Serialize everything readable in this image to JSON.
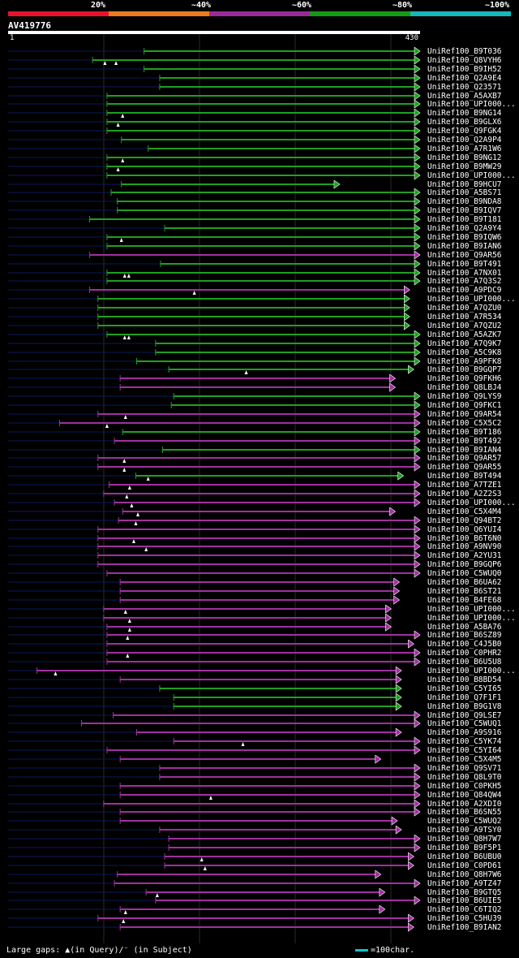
{
  "legend": [
    {
      "label": "20%",
      "color": "#e8122b"
    },
    {
      "label": "~40%",
      "color": "#ee7a1e"
    },
    {
      "label": "~60%",
      "color": "#9a2a9a"
    },
    {
      "label": "~80%",
      "color": "#139b13"
    },
    {
      "label": "~100%",
      "color": "#14b8bb"
    }
  ],
  "query": {
    "name": "AV419776",
    "start": "1",
    "end": "430"
  },
  "colors": {
    "green": "#1fa01f",
    "purple": "#a030a0",
    "navy": "#0a1a5a",
    "marker": "#ffffff"
  },
  "hits": [
    {
      "name": "UniRef100_B9T036",
      "s": 0.33,
      "e": 1.0,
      "c": "green"
    },
    {
      "name": "UniRef100_Q8VYH6",
      "s": 0.205,
      "e": 1.0,
      "c": "green",
      "m": [
        0.235,
        0.262
      ]
    },
    {
      "name": "UniRef100_B9IH52",
      "s": 0.33,
      "e": 1.0,
      "c": "green"
    },
    {
      "name": "UniRef100_Q2A9E4",
      "s": 0.368,
      "e": 1.0,
      "c": "green"
    },
    {
      "name": "UniRef100_Q23571",
      "s": 0.368,
      "e": 1.0,
      "c": "green"
    },
    {
      "name": "UniRef100_A5AXB7",
      "s": 0.24,
      "e": 1.0,
      "c": "green"
    },
    {
      "name": "UniRef100_UPI000...",
      "s": 0.24,
      "e": 1.0,
      "c": "green"
    },
    {
      "name": "UniRef100_B9NG14",
      "s": 0.24,
      "e": 1.0,
      "c": "green",
      "m": [
        0.278
      ]
    },
    {
      "name": "UniRef100_B9GLX6",
      "s": 0.24,
      "e": 1.0,
      "c": "green",
      "m": [
        0.267
      ]
    },
    {
      "name": "UniRef100_Q9FGK4",
      "s": 0.24,
      "e": 1.0,
      "c": "green"
    },
    {
      "name": "UniRef100_Q2A9P4",
      "s": 0.275,
      "e": 1.0,
      "c": "green"
    },
    {
      "name": "UniRef100_A7R1W6",
      "s": 0.34,
      "e": 1.0,
      "c": "green"
    },
    {
      "name": "UniRef100_B9NG12",
      "s": 0.24,
      "e": 1.0,
      "c": "green",
      "m": [
        0.278
      ]
    },
    {
      "name": "UniRef100_B9MW29",
      "s": 0.24,
      "e": 1.0,
      "c": "green",
      "m": [
        0.267
      ]
    },
    {
      "name": "UniRef100_UPI000...",
      "s": 0.24,
      "e": 1.0,
      "c": "green"
    },
    {
      "name": "UniRef100_B9HCU7",
      "s": 0.275,
      "e": 0.805,
      "c": "green"
    },
    {
      "name": "UniRef100_A5BS71",
      "s": 0.25,
      "e": 1.0,
      "c": "green"
    },
    {
      "name": "UniRef100_B9NDA8",
      "s": 0.265,
      "e": 1.0,
      "c": "green"
    },
    {
      "name": "UniRef100_B9IQV7",
      "s": 0.265,
      "e": 1.0,
      "c": "green"
    },
    {
      "name": "UniRef100_B9T181",
      "s": 0.198,
      "e": 1.0,
      "c": "green"
    },
    {
      "name": "UniRef100_Q2A9Y4",
      "s": 0.38,
      "e": 1.0,
      "c": "green"
    },
    {
      "name": "UniRef100_B9IQW6",
      "s": 0.24,
      "e": 1.0,
      "c": "green",
      "m": [
        0.275
      ]
    },
    {
      "name": "UniRef100_B9IAN6",
      "s": 0.24,
      "e": 1.0,
      "c": "green"
    },
    {
      "name": "UniRef100_Q9AR56",
      "s": 0.198,
      "e": 1.0,
      "c": "purple"
    },
    {
      "name": "UniRef100_B9T491",
      "s": 0.37,
      "e": 1.0,
      "c": "green"
    },
    {
      "name": "UniRef100_A7NX01",
      "s": 0.24,
      "e": 1.0,
      "c": "green",
      "m": [
        0.283,
        0.293
      ]
    },
    {
      "name": "UniRef100_A7Q3S2",
      "s": 0.24,
      "e": 1.0,
      "c": "green"
    },
    {
      "name": "UniRef100_A9PDC9",
      "s": 0.198,
      "e": 0.975,
      "c": "purple",
      "m": [
        0.452
      ]
    },
    {
      "name": "UniRef100_UPI000...",
      "s": 0.218,
      "e": 0.975,
      "c": "green"
    },
    {
      "name": "UniRef100_A7QZU0",
      "s": 0.218,
      "e": 0.975,
      "c": "green"
    },
    {
      "name": "UniRef100_A7R534",
      "s": 0.218,
      "e": 0.975,
      "c": "green"
    },
    {
      "name": "UniRef100_A7QZU2",
      "s": 0.218,
      "e": 0.975,
      "c": "green"
    },
    {
      "name": "UniRef100_A5AZK7",
      "s": 0.24,
      "e": 1.0,
      "c": "green",
      "m": [
        0.283,
        0.293
      ]
    },
    {
      "name": "UniRef100_A7Q9K7",
      "s": 0.358,
      "e": 1.0,
      "c": "green"
    },
    {
      "name": "UniRef100_A5C9K8",
      "s": 0.358,
      "e": 1.0,
      "c": "green"
    },
    {
      "name": "UniRef100_A9PFK8",
      "s": 0.312,
      "e": 1.0,
      "c": "green"
    },
    {
      "name": "UniRef100_B9GQP7",
      "s": 0.39,
      "e": 0.985,
      "c": "green",
      "m": [
        0.578
      ]
    },
    {
      "name": "UniRef100_Q9FKH6",
      "s": 0.272,
      "e": 0.94,
      "c": "purple"
    },
    {
      "name": "UniRef100_Q8LBJ4",
      "s": 0.272,
      "e": 0.94,
      "c": "purple"
    },
    {
      "name": "UniRef100_Q9LYS9",
      "s": 0.402,
      "e": 1.0,
      "c": "green"
    },
    {
      "name": "UniRef100_Q9FKC1",
      "s": 0.396,
      "e": 1.0,
      "c": "green"
    },
    {
      "name": "UniRef100_Q9AR54",
      "s": 0.218,
      "e": 1.0,
      "c": "purple",
      "m": [
        0.285
      ]
    },
    {
      "name": "UniRef100_C5X5C2",
      "s": 0.125,
      "e": 1.0,
      "c": "purple",
      "m": [
        0.24
      ]
    },
    {
      "name": "UniRef100_B9T186",
      "s": 0.278,
      "e": 1.0,
      "c": "green"
    },
    {
      "name": "UniRef100_B9T492",
      "s": 0.258,
      "e": 1.0,
      "c": "purple"
    },
    {
      "name": "UniRef100_B9IAN4",
      "s": 0.375,
      "e": 1.0,
      "c": "green"
    },
    {
      "name": "UniRef100_Q9AR57",
      "s": 0.218,
      "e": 1.0,
      "c": "purple",
      "m": [
        0.282
      ]
    },
    {
      "name": "UniRef100_Q9AR55",
      "s": 0.218,
      "e": 1.0,
      "c": "purple",
      "m": [
        0.282
      ]
    },
    {
      "name": "UniRef100_B9T494",
      "s": 0.31,
      "e": 0.96,
      "c": "green",
      "m": [
        0.34
      ]
    },
    {
      "name": "UniRef100_A7TZE1",
      "s": 0.245,
      "e": 1.0,
      "c": "purple",
      "m": [
        0.295
      ]
    },
    {
      "name": "UniRef100_A2Z2S3",
      "s": 0.232,
      "e": 1.0,
      "c": "purple",
      "m": [
        0.288
      ]
    },
    {
      "name": "UniRef100_UPI000...",
      "s": 0.258,
      "e": 1.0,
      "c": "purple",
      "m": [
        0.3
      ]
    },
    {
      "name": "UniRef100_C5X4M4",
      "s": 0.278,
      "e": 0.94,
      "c": "purple",
      "m": [
        0.315
      ]
    },
    {
      "name": "UniRef100_Q94BT2",
      "s": 0.268,
      "e": 1.0,
      "c": "purple",
      "m": [
        0.31
      ]
    },
    {
      "name": "UniRef100_Q6YUI4",
      "s": 0.218,
      "e": 1.0,
      "c": "purple"
    },
    {
      "name": "UniRef100_B6T6N0",
      "s": 0.218,
      "e": 1.0,
      "c": "purple",
      "m": [
        0.305
      ]
    },
    {
      "name": "UniRef100_A9NV90",
      "s": 0.218,
      "e": 1.0,
      "c": "purple",
      "m": [
        0.335
      ]
    },
    {
      "name": "UniRef100_A2YU31",
      "s": 0.218,
      "e": 1.0,
      "c": "purple"
    },
    {
      "name": "UniRef100_B9GQP6",
      "s": 0.218,
      "e": 1.0,
      "c": "purple"
    },
    {
      "name": "UniRef100_C5WUQ0",
      "s": 0.24,
      "e": 1.0,
      "c": "purple"
    },
    {
      "name": "UniRef100_B6UA62",
      "s": 0.272,
      "e": 0.95,
      "c": "purple"
    },
    {
      "name": "UniRef100_B6ST21",
      "s": 0.272,
      "e": 0.95,
      "c": "purple"
    },
    {
      "name": "UniRef100_B4FE68",
      "s": 0.272,
      "e": 0.95,
      "c": "purple"
    },
    {
      "name": "UniRef100_UPI000...",
      "s": 0.232,
      "e": 0.93,
      "c": "purple",
      "m": [
        0.285
      ]
    },
    {
      "name": "UniRef100_UPI000...",
      "s": 0.232,
      "e": 0.93,
      "c": "purple",
      "m": [
        0.295
      ]
    },
    {
      "name": "UniRef100_A5BA76",
      "s": 0.24,
      "e": 0.93,
      "c": "purple",
      "m": [
        0.295
      ]
    },
    {
      "name": "UniRef100_B6SZ89",
      "s": 0.24,
      "e": 1.0,
      "c": "purple",
      "m": [
        0.29
      ]
    },
    {
      "name": "UniRef100_C4J5B0",
      "s": 0.24,
      "e": 0.985,
      "c": "purple"
    },
    {
      "name": "UniRef100_C0PHR2",
      "s": 0.24,
      "e": 1.0,
      "c": "purple",
      "m": [
        0.29
      ]
    },
    {
      "name": "UniRef100_B6U5U8",
      "s": 0.24,
      "e": 1.0,
      "c": "purple"
    },
    {
      "name": "UniRef100_UPI000...",
      "s": 0.07,
      "e": 0.955,
      "c": "purple",
      "m": [
        0.115
      ]
    },
    {
      "name": "UniRef100_B8BD54",
      "s": 0.272,
      "e": 0.955,
      "c": "purple"
    },
    {
      "name": "UniRef100_C5YI65",
      "s": 0.368,
      "e": 0.955,
      "c": "green"
    },
    {
      "name": "UniRef100_Q7F1F1",
      "s": 0.402,
      "e": 0.955,
      "c": "green"
    },
    {
      "name": "UniRef100_B9G1V8",
      "s": 0.402,
      "e": 0.955,
      "c": "green"
    },
    {
      "name": "UniRef100_Q9LSE7",
      "s": 0.255,
      "e": 1.0,
      "c": "purple"
    },
    {
      "name": "UniRef100_C5WUQ1",
      "s": 0.178,
      "e": 1.0,
      "c": "purple"
    },
    {
      "name": "UniRef100_A9S916",
      "s": 0.312,
      "e": 0.955,
      "c": "purple"
    },
    {
      "name": "UniRef100_C5YK74",
      "s": 0.402,
      "e": 1.0,
      "c": "purple",
      "m": [
        0.57
      ]
    },
    {
      "name": "UniRef100_C5YI64",
      "s": 0.24,
      "e": 1.0,
      "c": "purple"
    },
    {
      "name": "UniRef100_C5X4M5",
      "s": 0.272,
      "e": 0.905,
      "c": "purple"
    },
    {
      "name": "UniRef100_Q9SV71",
      "s": 0.368,
      "e": 1.0,
      "c": "purple"
    },
    {
      "name": "UniRef100_Q8L9T0",
      "s": 0.368,
      "e": 1.0,
      "c": "purple"
    },
    {
      "name": "UniRef100_C0PKH5",
      "s": 0.272,
      "e": 1.0,
      "c": "purple"
    },
    {
      "name": "UniRef100_Q84QW4",
      "s": 0.272,
      "e": 1.0,
      "c": "purple",
      "m": [
        0.492
      ]
    },
    {
      "name": "UniRef100_A2XDI0",
      "s": 0.232,
      "e": 1.0,
      "c": "purple"
    },
    {
      "name": "UniRef100_B6SN55",
      "s": 0.272,
      "e": 1.0,
      "c": "purple"
    },
    {
      "name": "UniRef100_C5WUQ2",
      "s": 0.272,
      "e": 0.945,
      "c": "purple"
    },
    {
      "name": "UniRef100_A9TSY0",
      "s": 0.368,
      "e": 0.955,
      "c": "purple"
    },
    {
      "name": "UniRef100_Q8H7W7",
      "s": 0.39,
      "e": 1.0,
      "c": "purple"
    },
    {
      "name": "UniRef100_B9F5P1",
      "s": 0.39,
      "e": 1.0,
      "c": "purple"
    },
    {
      "name": "UniRef100_B6UBU0",
      "s": 0.38,
      "e": 0.985,
      "c": "purple",
      "m": [
        0.47
      ]
    },
    {
      "name": "UniRef100_C0PD61",
      "s": 0.38,
      "e": 0.985,
      "c": "purple",
      "m": [
        0.478
      ]
    },
    {
      "name": "UniRef100_Q8H7W6",
      "s": 0.265,
      "e": 0.905,
      "c": "purple"
    },
    {
      "name": "UniRef100_A9TZ47",
      "s": 0.258,
      "e": 1.0,
      "c": "purple"
    },
    {
      "name": "UniRef100_B9GTQ5",
      "s": 0.335,
      "e": 0.915,
      "c": "purple",
      "m": [
        0.362
      ]
    },
    {
      "name": "UniRef100_B6UIE5",
      "s": 0.358,
      "e": 1.0,
      "c": "purple"
    },
    {
      "name": "UniRef100_C6TIQ2",
      "s": 0.272,
      "e": 0.915,
      "c": "purple",
      "m": [
        0.285
      ]
    },
    {
      "name": "UniRef100_C5HU39",
      "s": 0.218,
      "e": 0.985,
      "c": "purple",
      "m": [
        0.28
      ]
    },
    {
      "name": "UniRef100_B9IAN2",
      "s": 0.272,
      "e": 0.985,
      "c": "purple"
    }
  ],
  "footer": {
    "gaps": "Large gaps: ▲(in Query)/⁻ (in Subject)",
    "scale": "=100char."
  }
}
